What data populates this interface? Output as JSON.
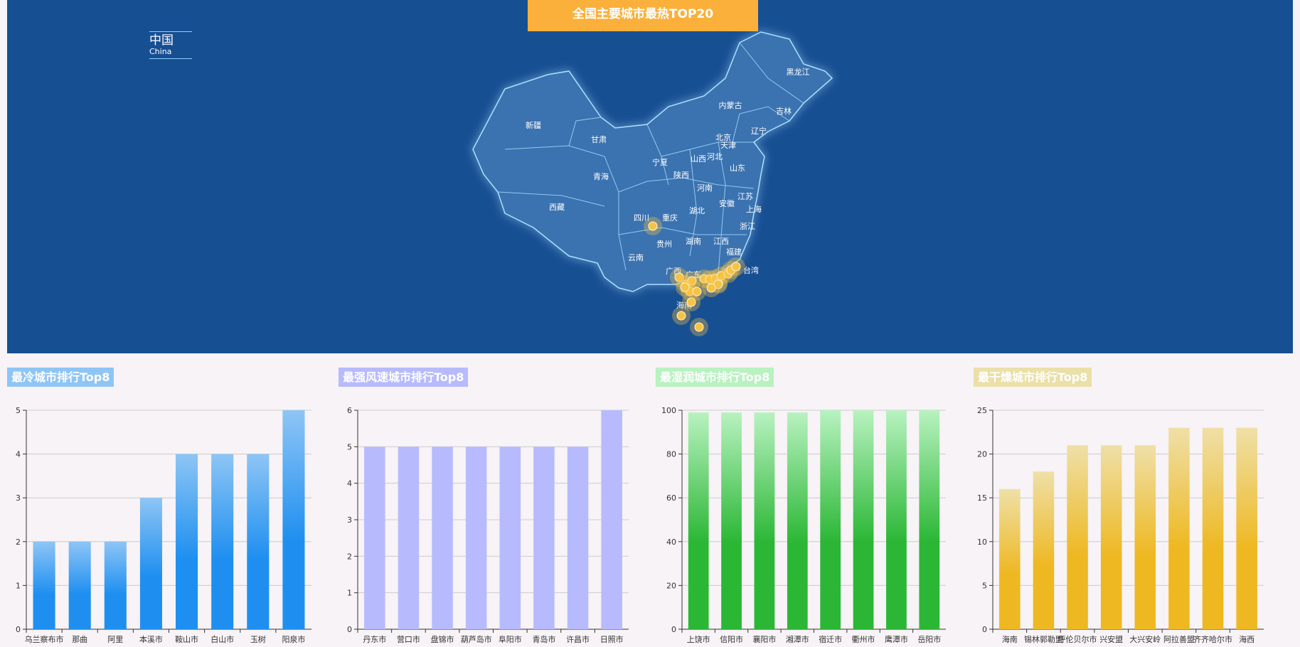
{
  "map": {
    "title": "全国主要城市最热TOP20",
    "legend_zh": "中国",
    "legend_en": "China",
    "province_labels": [
      "新疆",
      "甘肃",
      "青海",
      "西藏",
      "内蒙古",
      "黑龙江",
      "吉林",
      "辽宁",
      "北京",
      "天津",
      "河北",
      "山西",
      "宁夏",
      "陕西",
      "山东",
      "河南",
      "江苏",
      "安徽",
      "上海",
      "湖北",
      "四川",
      "重庆",
      "浙江",
      "贵州",
      "湖南",
      "江西",
      "福建",
      "云南",
      "广西",
      "广东",
      "台湾",
      "海南"
    ],
    "colors": {
      "background": "#174f93",
      "title_bg": "#fbb03b",
      "marker": "#f6c344"
    }
  },
  "charts": [
    {
      "title": "最冷城市排行Top8",
      "color_top": "#8ec5f5",
      "color_bottom": "#1e8ff0",
      "title_bg": "#8ec5f5"
    },
    {
      "title": "最强风速城市排行Top8",
      "color_top": "#b7bbfd",
      "color_bottom": "#b7bbfd",
      "title_bg": "#b7bbfd"
    },
    {
      "title": "最湿润城市排行Top8",
      "color_top": "#b8f2c0",
      "color_bottom": "#2bb735",
      "title_bg": "#b8f2c0"
    },
    {
      "title": "最干燥城市排行Top8",
      "color_top": "#efe0a8",
      "color_bottom": "#eeb822",
      "title_bg": "#eae0a8"
    }
  ],
  "chart_data": [
    {
      "type": "bar",
      "title": "最冷城市排行Top8",
      "categories": [
        "乌兰察布市",
        "那曲",
        "阿里",
        "本溪市",
        "鞍山市",
        "白山市",
        "玉树",
        "阳泉市"
      ],
      "values": [
        2,
        2,
        2,
        3,
        4,
        4,
        4,
        5
      ],
      "ylim": [
        0,
        5
      ],
      "yticks": [
        0,
        1,
        2,
        3,
        4,
        5
      ],
      "grid": true
    },
    {
      "type": "bar",
      "title": "最强风速城市排行Top8",
      "categories": [
        "丹东市",
        "营口市",
        "盘锦市",
        "葫芦岛市",
        "阜阳市",
        "青岛市",
        "许昌市",
        "日照市"
      ],
      "values": [
        5,
        5,
        5,
        5,
        5,
        5,
        5,
        6
      ],
      "ylim": [
        0,
        6
      ],
      "yticks": [
        0,
        1,
        2,
        3,
        4,
        5,
        6
      ],
      "grid": true
    },
    {
      "type": "bar",
      "title": "最湿润城市排行Top8",
      "categories": [
        "上饶市",
        "信阳市",
        "襄阳市",
        "湘潭市",
        "宿迁市",
        "衢州市",
        "鹰潭市",
        "岳阳市"
      ],
      "values": [
        99,
        99,
        99,
        99,
        100,
        100,
        100,
        100
      ],
      "ylim": [
        0,
        100
      ],
      "yticks": [
        0,
        20,
        40,
        60,
        80,
        100
      ],
      "grid": true
    },
    {
      "type": "bar",
      "title": "最干燥城市排行Top8",
      "categories": [
        "海南",
        "锡林郭勒盟",
        "呼伦贝尔市",
        "兴安盟",
        "大兴安岭",
        "阿拉善盟",
        "齐齐哈尔市",
        "海西"
      ],
      "values": [
        16,
        18,
        21,
        21,
        21,
        23,
        23,
        23
      ],
      "ylim": [
        0,
        25
      ],
      "yticks": [
        0,
        5,
        10,
        15,
        20,
        25
      ],
      "grid": true
    }
  ]
}
